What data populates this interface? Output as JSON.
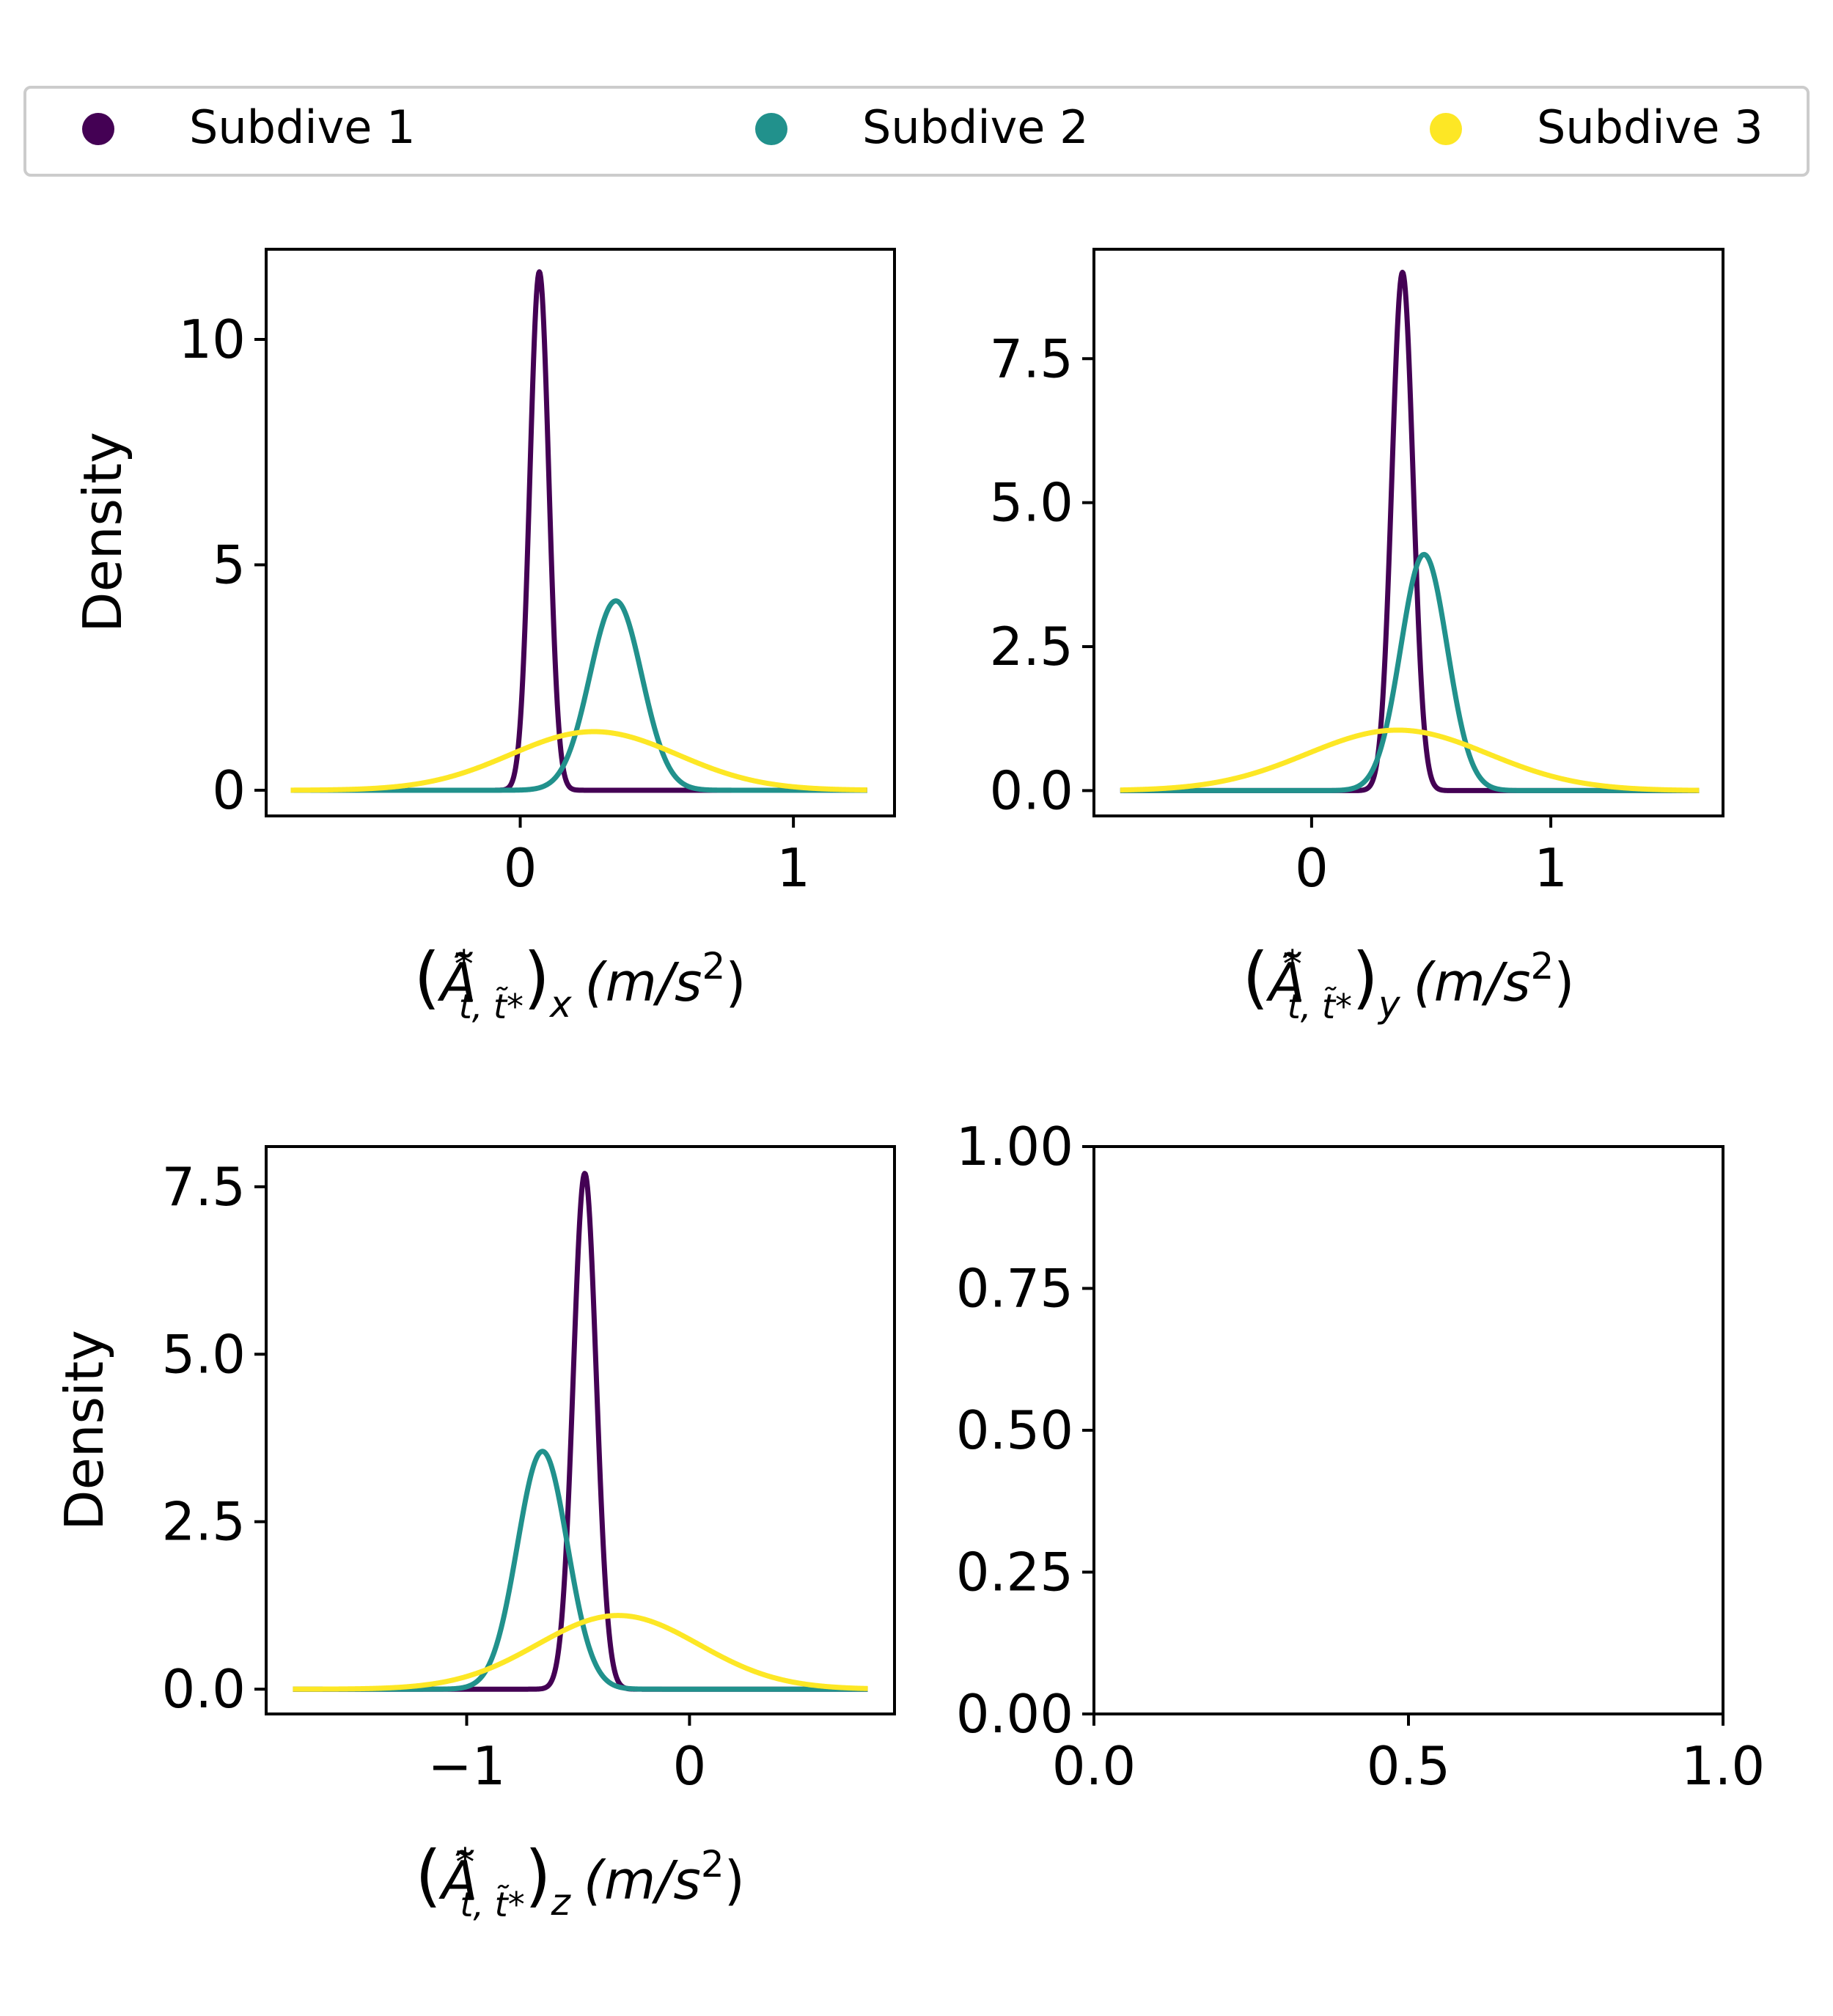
{
  "legend": {
    "placement": "top",
    "items": [
      {
        "label": "Subdive 1",
        "color": "#440154"
      },
      {
        "label": "Subdive 2",
        "color": "#21918c"
      },
      {
        "label": "Subdive 3",
        "color": "#fde725"
      }
    ]
  },
  "chart_data": [
    {
      "type": "line",
      "panel": "top-left",
      "ylabel": "Density",
      "xlabel_parts": {
        "base": "Ã",
        "sup": "*",
        "sub": "t, t̃*",
        "comp": "x",
        "unit_pre": "(m/s",
        "unit_sup": "2",
        "unit_post": ")"
      },
      "xlim": [
        -0.93,
        1.37
      ],
      "ylim": [
        -0.57,
        12.0
      ],
      "xticks": [
        {
          "value": 0,
          "label": "0"
        },
        {
          "value": 1,
          "label": "1"
        }
      ],
      "yticks": [
        {
          "value": 0,
          "label": "0"
        },
        {
          "value": 5,
          "label": "5"
        },
        {
          "value": 10,
          "label": "10"
        }
      ],
      "x_range": [
        -0.84,
        1.27
      ],
      "series": [
        {
          "name": "Subdive 1",
          "color": "#440154",
          "distribution": "normal",
          "mean": 0.07,
          "peak": 11.5
        },
        {
          "name": "Subdive 2",
          "color": "#21918c",
          "distribution": "normal",
          "mean": 0.35,
          "peak": 4.2
        },
        {
          "name": "Subdive 3",
          "color": "#fde725",
          "distribution": "normal",
          "mean": 0.27,
          "peak": 1.3
        }
      ]
    },
    {
      "type": "line",
      "panel": "top-right",
      "ylabel": "",
      "xlabel_parts": {
        "base": "Ã",
        "sup": "*",
        "sub": "t, t̃*",
        "comp": "y",
        "unit_pre": "(m/s",
        "unit_sup": "2",
        "unit_post": ")"
      },
      "xlim": [
        -0.91,
        1.72
      ],
      "ylim": [
        -0.44,
        9.4
      ],
      "xticks": [
        {
          "value": 0,
          "label": "0"
        },
        {
          "value": 1,
          "label": "1"
        }
      ],
      "yticks": [
        {
          "value": 0,
          "label": "0.0"
        },
        {
          "value": 2.5,
          "label": "2.5"
        },
        {
          "value": 5,
          "label": "5.0"
        },
        {
          "value": 7.5,
          "label": "7.5"
        }
      ],
      "x_range": [
        -0.8,
        1.62
      ],
      "series": [
        {
          "name": "Subdive 1",
          "color": "#440154",
          "distribution": "normal",
          "mean": 0.38,
          "peak": 9.0
        },
        {
          "name": "Subdive 2",
          "color": "#21918c",
          "distribution": "normal",
          "mean": 0.47,
          "peak": 4.1
        },
        {
          "name": "Subdive 3",
          "color": "#fde725",
          "distribution": "normal",
          "mean": 0.36,
          "peak": 1.05
        }
      ]
    },
    {
      "type": "line",
      "panel": "bottom-left",
      "ylabel": "Density",
      "xlabel_parts": {
        "base": "Ã",
        "sup": "*",
        "sub": "t, t̃*",
        "comp": "z",
        "unit_pre": "(m/s",
        "unit_sup": "2",
        "unit_post": ")"
      },
      "xlim": [
        -1.9,
        0.92
      ],
      "ylim": [
        -0.37,
        8.1
      ],
      "xticks": [
        {
          "value": -1,
          "label": "−1"
        },
        {
          "value": 0,
          "label": "0"
        }
      ],
      "yticks": [
        {
          "value": 0,
          "label": "0.0"
        },
        {
          "value": 2.5,
          "label": "2.5"
        },
        {
          "value": 5,
          "label": "5.0"
        },
        {
          "value": 7.5,
          "label": "7.5"
        }
      ],
      "x_range": [
        -1.78,
        0.8
      ],
      "series": [
        {
          "name": "Subdive 1",
          "color": "#440154",
          "distribution": "normal",
          "mean": -0.47,
          "peak": 7.7
        },
        {
          "name": "Subdive 2",
          "color": "#21918c",
          "distribution": "normal",
          "mean": -0.66,
          "peak": 3.55
        },
        {
          "name": "Subdive 3",
          "color": "#fde725",
          "distribution": "normal",
          "mean": -0.32,
          "peak": 1.1
        }
      ]
    },
    {
      "type": "line",
      "panel": "bottom-right",
      "ylabel": "",
      "xlim": [
        0,
        1
      ],
      "ylim": [
        0,
        1
      ],
      "xticks": [
        {
          "value": 0,
          "label": "0.0"
        },
        {
          "value": 0.5,
          "label": "0.5"
        },
        {
          "value": 1,
          "label": "1.0"
        }
      ],
      "yticks": [
        {
          "value": 0,
          "label": "0.00"
        },
        {
          "value": 0.25,
          "label": "0.25"
        },
        {
          "value": 0.5,
          "label": "0.50"
        },
        {
          "value": 0.75,
          "label": "0.75"
        },
        {
          "value": 1,
          "label": "1.00"
        }
      ],
      "series": []
    }
  ]
}
